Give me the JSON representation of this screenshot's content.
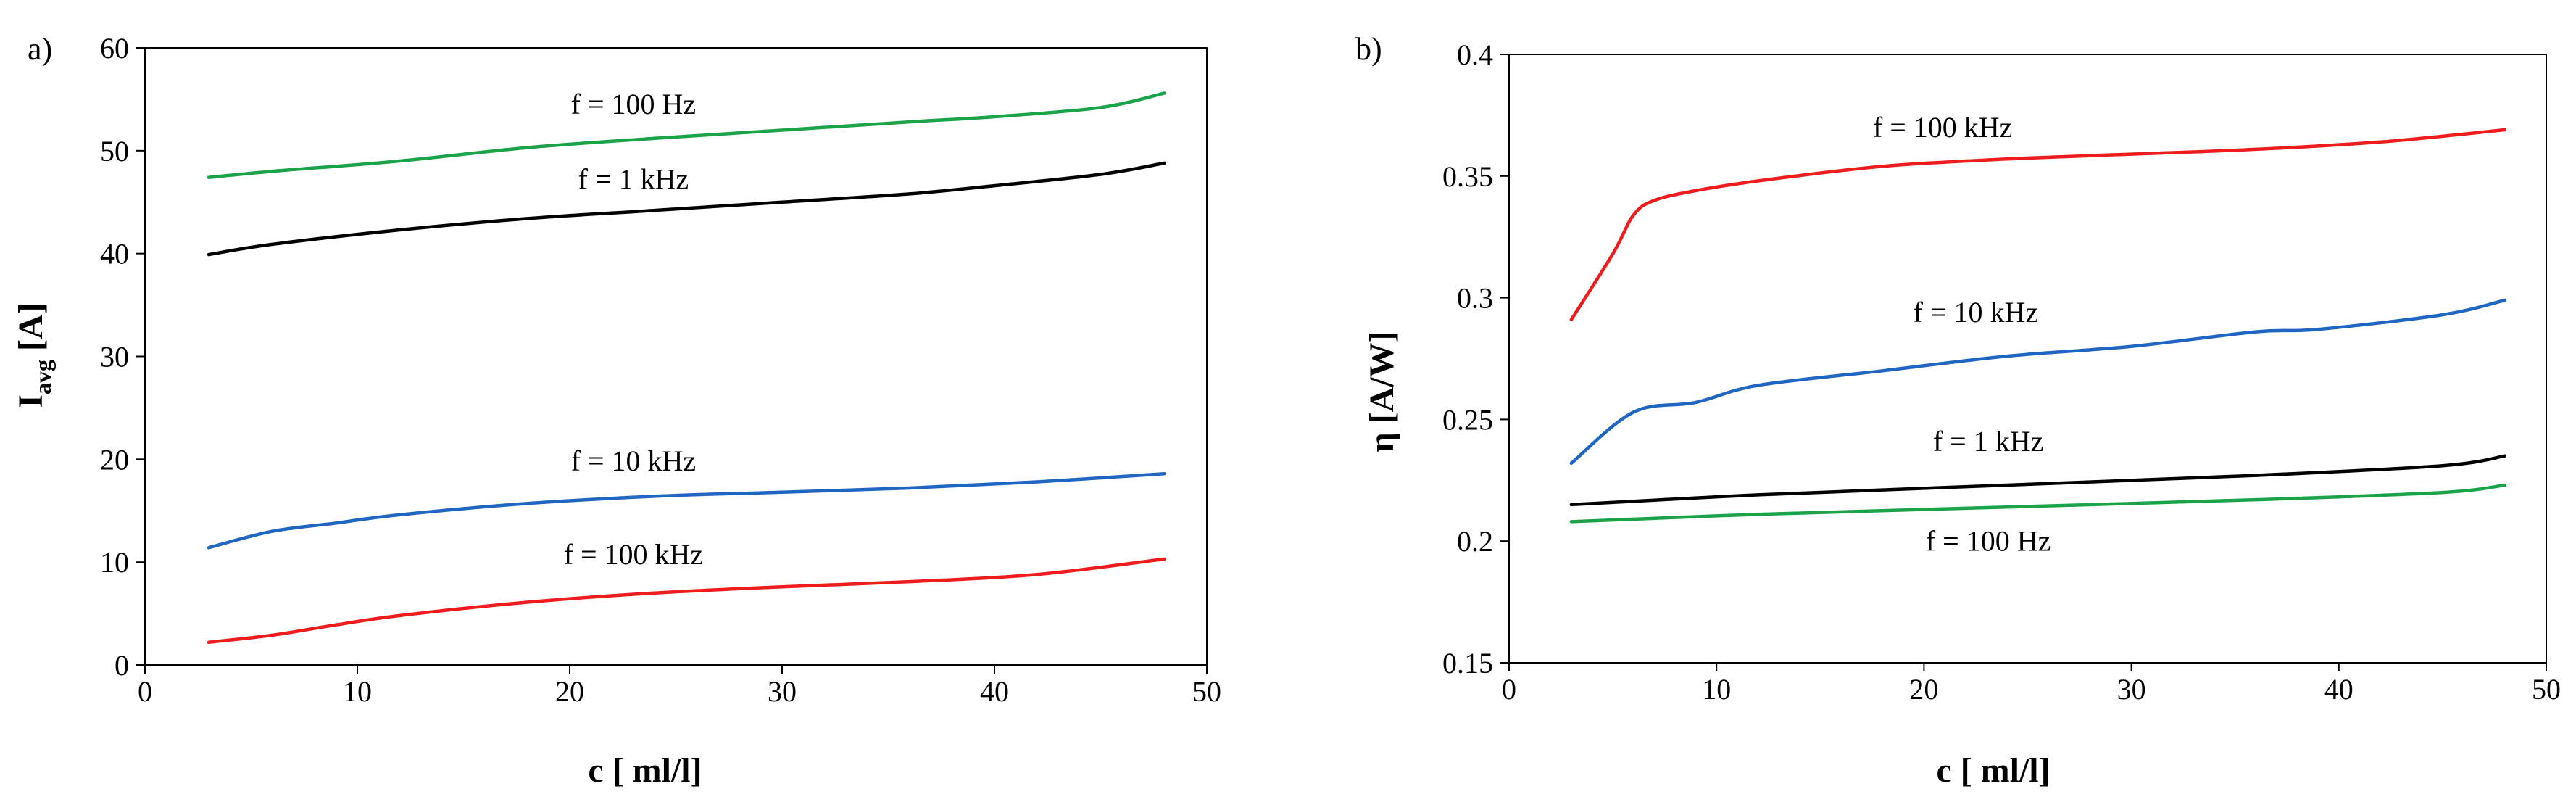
{
  "chart_data": [
    {
      "panel": "a)",
      "type": "line",
      "xlabel": "c [ ml/l]",
      "ylabel": "I",
      "ylabel_sub": "avg",
      "ylabel_unit": " [A]",
      "xlim": [
        0,
        50
      ],
      "ylim": [
        0,
        60
      ],
      "xticks": [
        0,
        10,
        20,
        30,
        40,
        50
      ],
      "yticks": [
        0,
        10,
        20,
        30,
        40,
        50,
        60
      ],
      "series": [
        {
          "name": "f = 100 Hz",
          "color": "#1ba34a",
          "x": [
            3,
            6,
            12,
            18,
            24,
            30,
            36,
            40,
            45,
            48
          ],
          "y": [
            47.4,
            48.0,
            49.0,
            50.3,
            51.2,
            52.0,
            52.8,
            53.3,
            54.2,
            55.6
          ]
        },
        {
          "name": "f = 1 kHz",
          "color": "#000000",
          "x": [
            3,
            6,
            12,
            18,
            24,
            30,
            36,
            40,
            45,
            48
          ],
          "y": [
            39.9,
            40.9,
            42.3,
            43.4,
            44.2,
            45.0,
            45.8,
            46.6,
            47.7,
            48.8
          ]
        },
        {
          "name": "f = 10 kHz",
          "color": "#1f66c2",
          "x": [
            3,
            6,
            9,
            12,
            18,
            24,
            30,
            36,
            42,
            48
          ],
          "y": [
            11.4,
            13.0,
            13.8,
            14.6,
            15.7,
            16.4,
            16.8,
            17.2,
            17.8,
            18.6
          ]
        },
        {
          "name": "f = 100 kHz",
          "color": "#ee1c1c",
          "x": [
            3,
            6,
            9,
            12,
            18,
            24,
            30,
            36,
            42,
            48
          ],
          "y": [
            2.2,
            2.9,
            3.9,
            4.8,
            6.1,
            7.0,
            7.6,
            8.1,
            8.8,
            10.3
          ]
        }
      ],
      "labels": [
        {
          "text": "f = 100 Hz",
          "x": 23,
          "y": 53.6
        },
        {
          "text": "f = 1 kHz",
          "x": 23,
          "y": 46.3
        },
        {
          "text": "f = 10 kHz",
          "x": 23,
          "y": 18.9
        },
        {
          "text": "f = 100 kHz",
          "x": 23,
          "y": 9.8
        }
      ]
    },
    {
      "panel": "b)",
      "type": "line",
      "xlabel": "c [ ml/l]",
      "ylabel": "η [A/W]",
      "xlim": [
        0,
        50
      ],
      "ylim": [
        0.15,
        0.4
      ],
      "xticks": [
        0,
        10,
        20,
        30,
        40,
        50
      ],
      "yticks": [
        0.15,
        0.2,
        0.25,
        0.3,
        0.35,
        0.4
      ],
      "ytick_labels": [
        "0.15",
        "0.2",
        "0.25",
        "0.3",
        "0.35",
        "0.4"
      ],
      "series": [
        {
          "name": "f = 100 kHz",
          "color": "#ee1c1c",
          "x": [
            3,
            5,
            6,
            7,
            9,
            12,
            18,
            24,
            30,
            36,
            42,
            48
          ],
          "y": [
            0.291,
            0.318,
            0.334,
            0.34,
            0.344,
            0.348,
            0.354,
            0.357,
            0.359,
            0.361,
            0.364,
            0.369
          ]
        },
        {
          "name": "f = 10 kHz",
          "color": "#1f66c2",
          "x": [
            3,
            6,
            9,
            12,
            18,
            24,
            30,
            36,
            39,
            45,
            48
          ],
          "y": [
            0.232,
            0.253,
            0.257,
            0.264,
            0.27,
            0.276,
            0.28,
            0.286,
            0.287,
            0.293,
            0.299
          ]
        },
        {
          "name": "f = 1 kHz",
          "color": "#000000",
          "x": [
            3,
            12,
            24,
            36,
            45,
            48
          ],
          "y": [
            0.215,
            0.219,
            0.223,
            0.227,
            0.231,
            0.235
          ]
        },
        {
          "name": "f = 100 Hz",
          "color": "#1ba34a",
          "x": [
            3,
            12,
            24,
            36,
            45,
            48
          ],
          "y": [
            0.208,
            0.211,
            0.214,
            0.217,
            0.22,
            0.223
          ]
        }
      ],
      "labels": [
        {
          "text": "f = 100 kHz",
          "x": 20.9,
          "y": 0.366
        },
        {
          "text": "f = 10 kHz",
          "x": 22.5,
          "y": 0.29
        },
        {
          "text": "f = 1 kHz",
          "x": 23.1,
          "y": 0.237
        },
        {
          "text": "f = 100 Hz",
          "x": 23.1,
          "y": 0.196
        }
      ]
    }
  ]
}
